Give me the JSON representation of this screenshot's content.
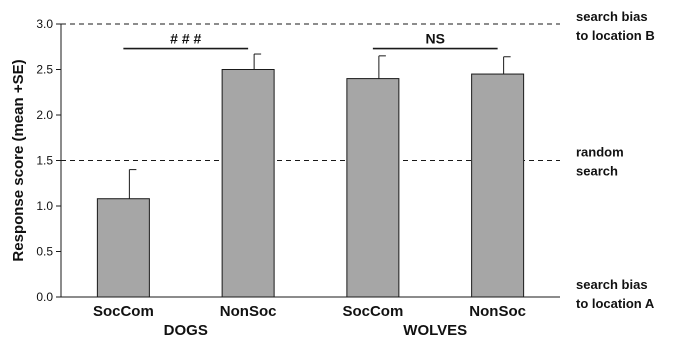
{
  "chart_data": {
    "type": "bar",
    "ylabel": "Response score (mean +SE)",
    "ylim": [
      0,
      3.0
    ],
    "yticks": [
      "0.0",
      "0.5",
      "1.0",
      "1.5",
      "2.0",
      "2.5",
      "3.0"
    ],
    "categories": [
      "SocCom",
      "NonSoc",
      "SocCom",
      "NonSoc"
    ],
    "groups": [
      {
        "label": "DOGS",
        "categories": [
          0,
          1
        ]
      },
      {
        "label": "WOLVES",
        "categories": [
          2,
          3
        ]
      }
    ],
    "values": [
      1.08,
      2.5,
      2.4,
      2.45
    ],
    "errors": [
      0.32,
      0.17,
      0.25,
      0.19
    ],
    "reference_lines": [
      {
        "y": 3.0,
        "label": [
          "search bias",
          "to location B"
        ]
      },
      {
        "y": 1.5,
        "label": [
          "random",
          "search"
        ]
      }
    ],
    "bottom_label": [
      "search bias",
      "to location A"
    ],
    "annotations": [
      {
        "text": "# # #",
        "from": 0,
        "to": 1,
        "y": 2.73
      },
      {
        "text": "NS",
        "from": 2,
        "to": 3,
        "y": 2.73
      }
    ],
    "colors": {
      "bar": "#a6a6a6"
    }
  }
}
